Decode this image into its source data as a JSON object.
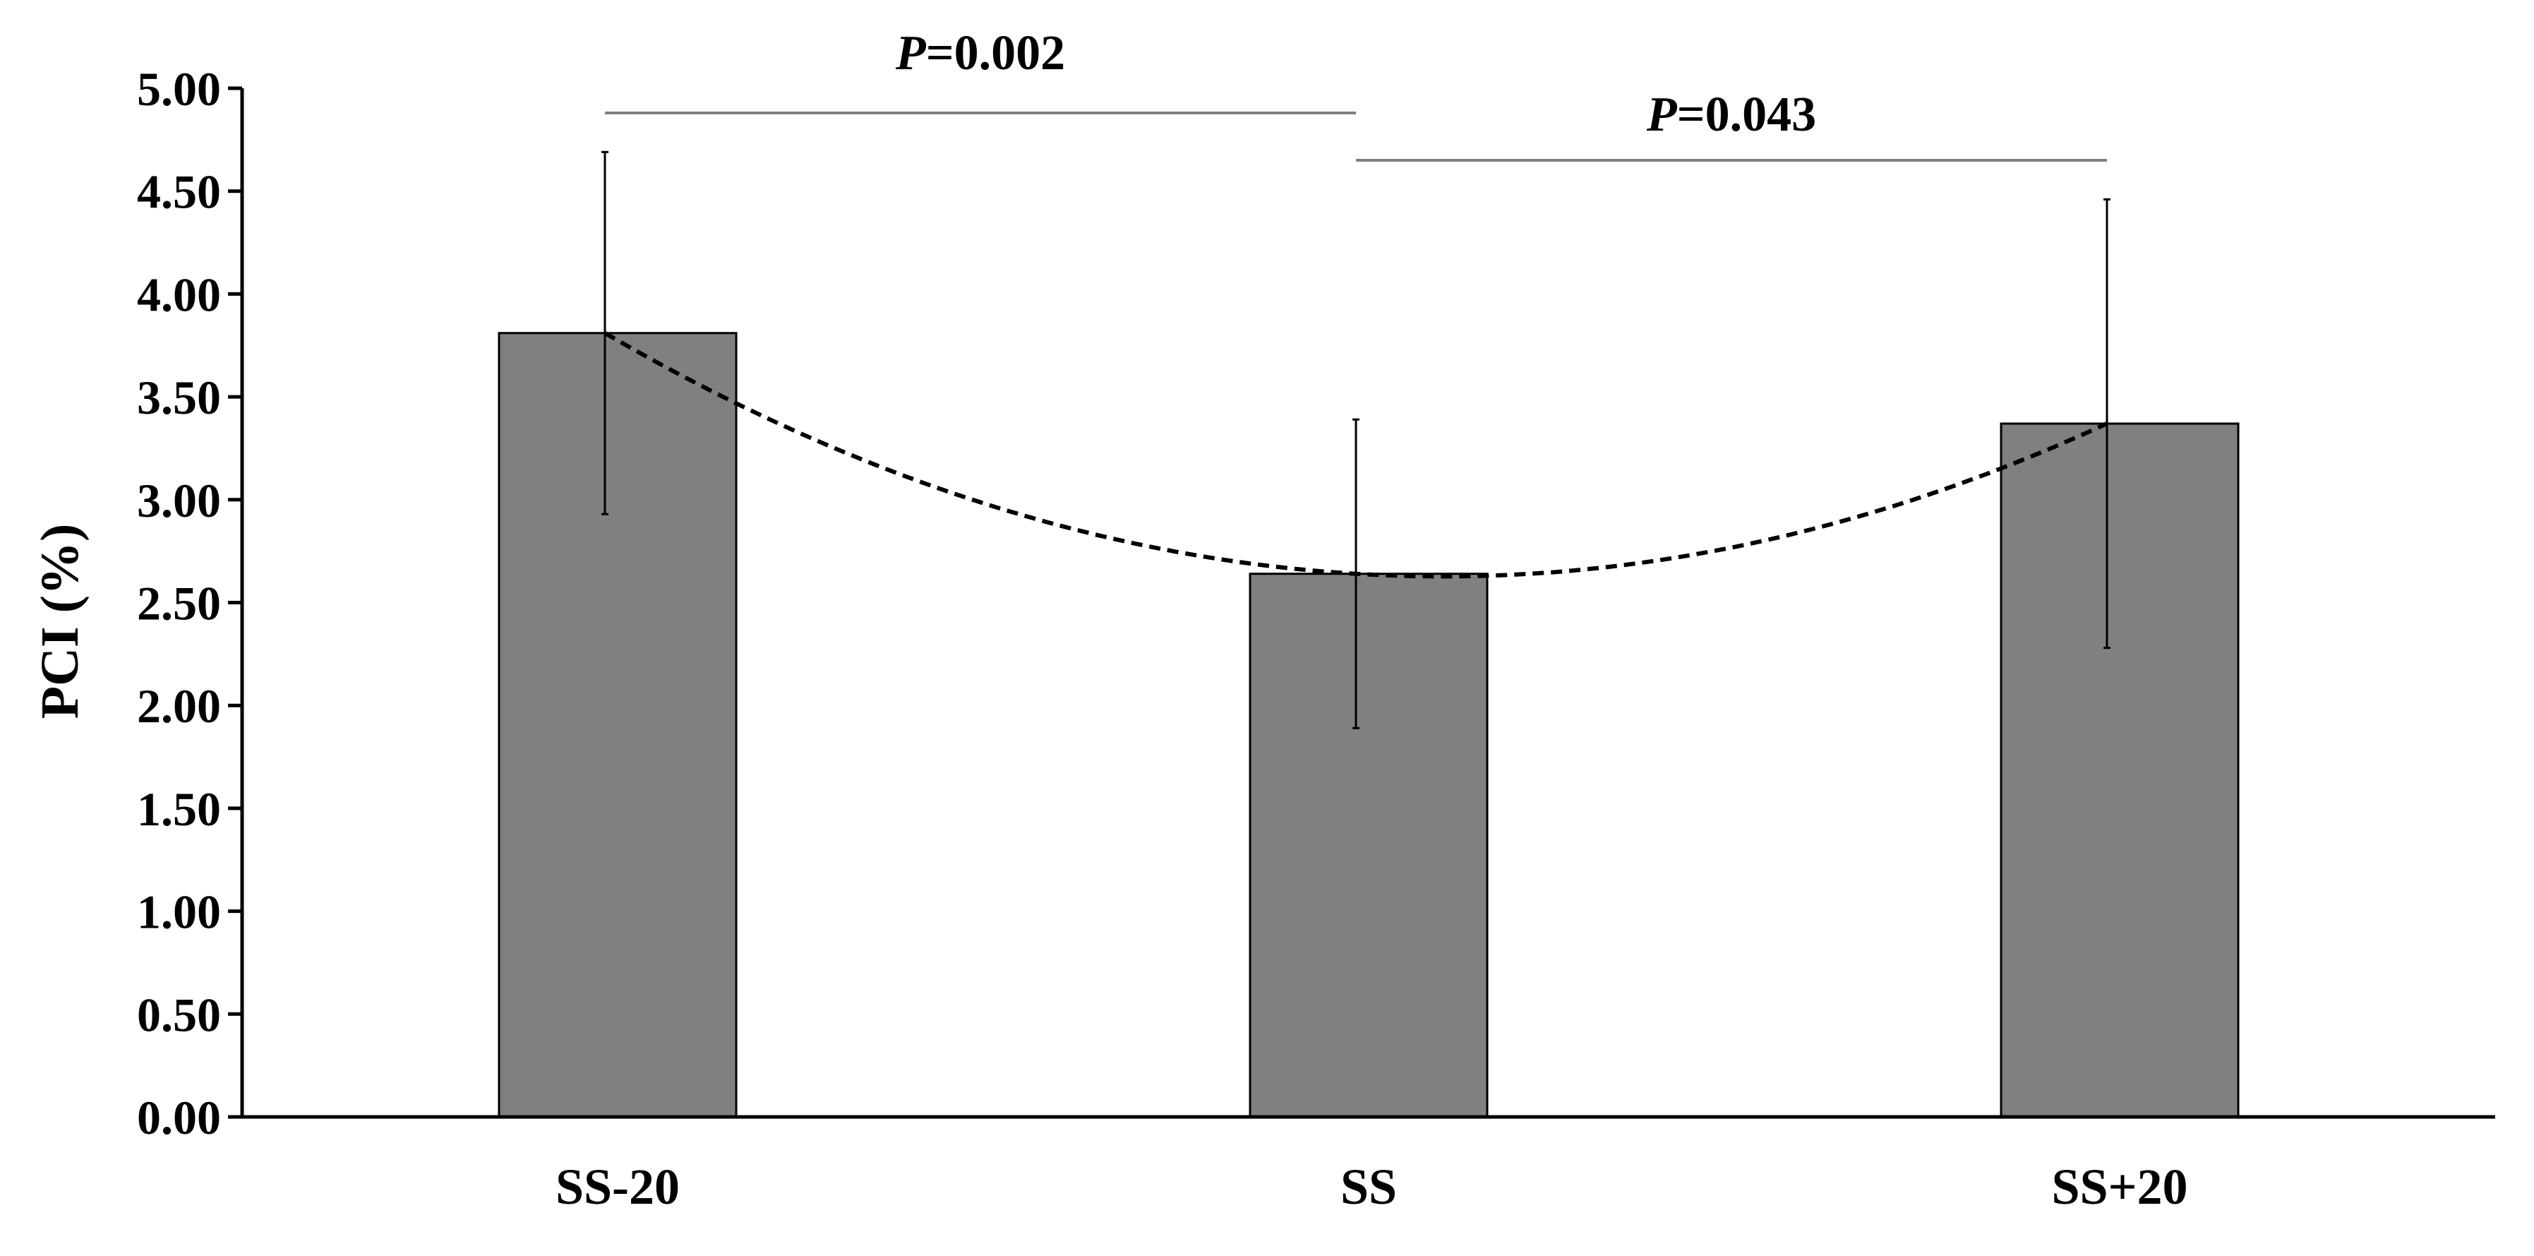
{
  "chart_data": {
    "type": "bar",
    "categories": [
      "SS-20",
      "SS",
      "SS+20"
    ],
    "values": [
      3.81,
      2.64,
      3.37
    ],
    "errors": [
      0.88,
      0.75,
      1.09
    ],
    "ylabel": "PCI (%)",
    "ylim": [
      0,
      5
    ],
    "yticks": [
      "0.00",
      "0.50",
      "1.00",
      "1.50",
      "2.00",
      "2.50",
      "3.00",
      "3.50",
      "4.00",
      "4.50",
      "5.00"
    ],
    "bar_color": "#808080",
    "trend_line": "dashed quadratic",
    "grid": false,
    "legend": "none",
    "comparisons": [
      {
        "from": 0,
        "to": 1,
        "label_italic": "P",
        "label_rest": "=0.002"
      },
      {
        "from": 1,
        "to": 2,
        "label_italic": "P",
        "label_rest": "=0.043"
      }
    ]
  }
}
